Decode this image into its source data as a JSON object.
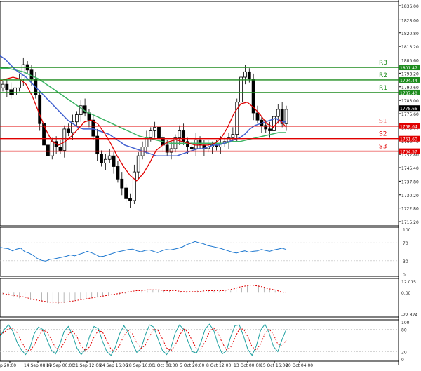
{
  "chart_data": {
    "type": "candlestick",
    "timeframe_labels": [
      "p 20:00",
      "14 Sep 08:00",
      "17 Sep 00:00",
      "21 Sep 12:00",
      "24 Sep 16:00",
      "28 Sep 16:00",
      "1 Oct 08:00",
      "5 Oct 20:00",
      "8 Oct 12:00",
      "13 Oct 00:00",
      "15 Oct 16:00",
      "20 Oct 04:00"
    ],
    "price_axis": {
      "min": 1715.2,
      "max": 1836.0,
      "ticks": [
        1836.0,
        1828.0,
        1820.8,
        1813.2,
        1805.6,
        1798.2,
        1790.6,
        1783.0,
        1775.6,
        1768.0,
        1760.4,
        1752.8,
        1745.4,
        1737.8,
        1730.2,
        1722.8,
        1715.2
      ],
      "tick_labels": [
        "1836.00",
        "1828.00",
        "1820.80",
        "1813.20",
        "1805.60",
        "1798.20",
        "1790.60",
        "1783.00",
        "1775.60",
        "1768.00",
        "1760.40",
        "1752.80",
        "1745.40",
        "1737.80",
        "1730.20",
        "1722.80",
        "1715.20"
      ]
    },
    "levels": [
      {
        "name": "R3",
        "value": 1801.47,
        "label": "1801.47",
        "color": "#1e8c1e"
      },
      {
        "name": "R2",
        "value": 1794.44,
        "label": "1794.44",
        "color": "#1e8c1e"
      },
      {
        "name": "R1",
        "value": 1787.4,
        "label": "1787.40",
        "color": "#1e8c1e"
      },
      {
        "name": "S1",
        "value": 1768.64,
        "label": "1768.64",
        "color": "#e00000"
      },
      {
        "name": "S2",
        "value": 1761.6,
        "label": "1761.60",
        "color": "#e00000"
      },
      {
        "name": "S3",
        "value": 1754.57,
        "label": "1754.57",
        "color": "#e00000"
      }
    ],
    "current_price": {
      "value": 1778.66,
      "label": "1778.66"
    },
    "close_series": [
      1792,
      1789,
      1786,
      1790,
      1795,
      1803,
      1800,
      1795,
      1786,
      1770,
      1758,
      1752,
      1760,
      1757,
      1755,
      1767,
      1765,
      1771,
      1775,
      1780,
      1776,
      1772,
      1763,
      1753,
      1748,
      1750,
      1752,
      1746,
      1739,
      1734,
      1728,
      1727,
      1743,
      1752,
      1757,
      1762,
      1766,
      1768,
      1762,
      1758,
      1754,
      1756,
      1762,
      1766,
      1760,
      1757,
      1756,
      1761,
      1758,
      1756,
      1757,
      1758,
      1757,
      1759,
      1760,
      1762,
      1764,
      1782,
      1796,
      1799,
      1795,
      1776,
      1772,
      1769,
      1767,
      1766,
      1774,
      1778,
      1770,
      1778
    ],
    "sma_fast": [
      1808,
      1806,
      1803,
      1800,
      1798,
      1796,
      1793,
      1790,
      1787,
      1784,
      1781,
      1778,
      1775,
      1772,
      1770,
      1768,
      1767,
      1767,
      1767,
      1766,
      1765,
      1764,
      1762,
      1760,
      1758,
      1757,
      1756,
      1755,
      1754,
      1753,
      1752,
      1752,
      1752,
      1752,
      1752,
      1753,
      1754,
      1755,
      1756,
      1756,
      1757,
      1758,
      1758,
      1759,
      1760,
      1761,
      1762,
      1764,
      1767,
      1769,
      1770,
      1771,
      1772,
      1773,
      1771,
      1771
    ],
    "sma_slow": [
      1801,
      1801,
      1800,
      1799,
      1797,
      1795,
      1792,
      1789,
      1786,
      1783,
      1780,
      1777,
      1775,
      1773,
      1771,
      1769,
      1767,
      1765,
      1763,
      1762,
      1761,
      1760,
      1759,
      1759,
      1759,
      1759,
      1759,
      1759,
      1759,
      1759,
      1760,
      1760,
      1761,
      1762,
      1763,
      1764,
      1765,
      1765
    ],
    "sma_red": [
      1794,
      1795,
      1796,
      1795,
      1792,
      1785,
      1776,
      1767,
      1760,
      1758,
      1760,
      1763,
      1767,
      1771,
      1772,
      1770,
      1765,
      1759,
      1752,
      1746,
      1741,
      1738,
      1742,
      1748,
      1755,
      1758,
      1760,
      1761,
      1760,
      1759,
      1758,
      1758,
      1758,
      1759,
      1762,
      1768,
      1776,
      1781,
      1782,
      1779,
      1775,
      1770,
      1768,
      1772,
      1768
    ],
    "rsi": {
      "ticks": [
        100,
        70,
        30,
        0
      ],
      "tick_labels": [
        "100",
        "70",
        "30",
        "0"
      ],
      "values": [
        60,
        58,
        57,
        52,
        56,
        58,
        50,
        47,
        42,
        35,
        31,
        29,
        33,
        34,
        36,
        38,
        40,
        43,
        41,
        44,
        47,
        51,
        48,
        44,
        39,
        40,
        43,
        46,
        49,
        51,
        53,
        55,
        56,
        52,
        50,
        53,
        54,
        51,
        48,
        52,
        55,
        54,
        56,
        58,
        61,
        66,
        69,
        73,
        70,
        68,
        64,
        62,
        60,
        58,
        55,
        52,
        49,
        47,
        50,
        52,
        49,
        51,
        52,
        55,
        53,
        51,
        54,
        56,
        58,
        55
      ]
    },
    "macd": {
      "ticks": [
        12.015,
        0.0,
        -22.824
      ],
      "tick_labels": [
        "12.015",
        "0.00",
        "-22.824"
      ],
      "hist": [
        -2,
        -3,
        -4,
        -6,
        -7,
        -8,
        -9,
        -10,
        -11,
        -12,
        -12,
        -11,
        -10,
        -9,
        -8,
        -7,
        -6,
        -5,
        -4,
        -3,
        -2,
        -2,
        -1,
        0,
        1,
        2,
        2,
        3,
        3,
        3,
        2,
        2,
        1,
        1,
        1,
        2,
        2,
        2,
        2,
        2,
        2,
        2,
        3,
        5,
        7,
        9,
        8,
        6,
        4,
        2,
        1,
        0
      ],
      "signal": [
        -1,
        -2,
        -3,
        -4,
        -5,
        -7,
        -8,
        -9,
        -10,
        -10,
        -10,
        -10,
        -9,
        -8,
        -7,
        -6,
        -5,
        -4,
        -3,
        -2,
        -1,
        0,
        1,
        2,
        2,
        3,
        3,
        3,
        2,
        2,
        2,
        1,
        1,
        1,
        1,
        2,
        2,
        2,
        2,
        3,
        4,
        6,
        7,
        8,
        7,
        6,
        4,
        3,
        1,
        0
      ]
    },
    "stochastic": {
      "ticks": [
        100,
        80,
        20,
        0
      ],
      "tick_labels": [
        "100",
        "80",
        "20",
        "0"
      ],
      "k": [
        60,
        80,
        92,
        75,
        45,
        25,
        12,
        30,
        68,
        86,
        80,
        52,
        24,
        14,
        40,
        74,
        88,
        64,
        30,
        12,
        26,
        62,
        88,
        82,
        48,
        20,
        10,
        32,
        68,
        90,
        72,
        42,
        18,
        28,
        64,
        92,
        86,
        54,
        24,
        12,
        30,
        70,
        92,
        80,
        48,
        20,
        16,
        44,
        80,
        94,
        78,
        40,
        14,
        22,
        60,
        90,
        92,
        62,
        26,
        10,
        36,
        78,
        94,
        70,
        34,
        20,
        52,
        80
      ],
      "d": [
        66,
        72,
        82,
        83,
        71,
        48,
        27,
        22,
        37,
        61,
        78,
        73,
        52,
        30,
        26,
        43,
        67,
        75,
        61,
        35,
        23,
        33,
        59,
        77,
        73,
        50,
        26,
        21,
        37,
        63,
        77,
        68,
        44,
        29,
        37,
        61,
        81,
        77,
        55,
        30,
        22,
        37,
        64,
        81,
        73,
        49,
        28,
        27,
        47,
        73,
        84,
        71,
        44,
        25,
        32,
        57,
        81,
        81,
        60,
        33,
        24,
        41,
        69,
        81,
        66,
        41,
        35,
        51
      ]
    }
  }
}
